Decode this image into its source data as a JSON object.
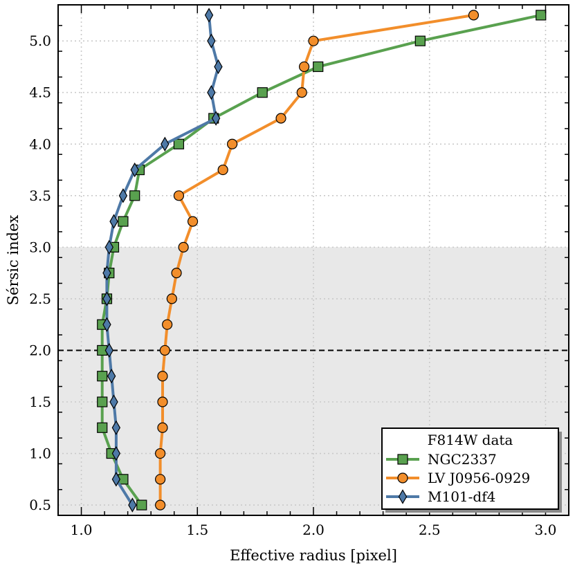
{
  "colors": {
    "background": "#ffffff",
    "shaded_band": "#e8e8e8",
    "grid": "#c9c9c9",
    "reference_line": "#000000"
  },
  "chart_data": {
    "type": "line",
    "xlabel": "Effective radius [pixel]",
    "ylabel": "Sérsic index",
    "xlim": [
      0.9,
      3.1
    ],
    "ylim": [
      0.4,
      5.35
    ],
    "xticks": [
      1.0,
      1.5,
      2.0,
      2.5,
      3.0
    ],
    "xtick_labels": [
      "1.0",
      "1.5",
      "2.0",
      "2.5",
      "3.0"
    ],
    "yticks": [
      0.5,
      1.0,
      1.5,
      2.0,
      2.5,
      3.0,
      3.5,
      4.0,
      4.5,
      5.0
    ],
    "ytick_labels": [
      "0.5",
      "1.0",
      "1.5",
      "2.0",
      "2.5",
      "3.0",
      "3.5",
      "4.0",
      "4.5",
      "5.0"
    ],
    "grid": true,
    "shaded_region": {
      "y": [
        0.4,
        3.0
      ]
    },
    "reference_line": {
      "y": 2.0,
      "style": "dashed"
    },
    "legend": {
      "title": "F814W data",
      "position": "bottom-right"
    },
    "series": [
      {
        "name": "NGC2337",
        "color": "#59a14f",
        "marker": "square",
        "points": [
          [
            1.26,
            0.5
          ],
          [
            1.18,
            0.75
          ],
          [
            1.13,
            1.0
          ],
          [
            1.09,
            1.25
          ],
          [
            1.09,
            1.5
          ],
          [
            1.09,
            1.75
          ],
          [
            1.09,
            2.0
          ],
          [
            1.09,
            2.25
          ],
          [
            1.11,
            2.5
          ],
          [
            1.12,
            2.75
          ],
          [
            1.14,
            3.0
          ],
          [
            1.18,
            3.25
          ],
          [
            1.23,
            3.5
          ],
          [
            1.25,
            3.75
          ],
          [
            1.42,
            4.0
          ],
          [
            1.57,
            4.25
          ],
          [
            1.78,
            4.5
          ],
          [
            2.02,
            4.75
          ],
          [
            2.46,
            5.0
          ],
          [
            2.98,
            5.25
          ]
        ]
      },
      {
        "name": "LV J0956-0929",
        "color": "#f28e2b",
        "marker": "circle",
        "points": [
          [
            1.34,
            0.5
          ],
          [
            1.34,
            0.75
          ],
          [
            1.34,
            1.0
          ],
          [
            1.35,
            1.25
          ],
          [
            1.35,
            1.5
          ],
          [
            1.35,
            1.75
          ],
          [
            1.36,
            2.0
          ],
          [
            1.37,
            2.25
          ],
          [
            1.39,
            2.5
          ],
          [
            1.41,
            2.75
          ],
          [
            1.44,
            3.0
          ],
          [
            1.48,
            3.25
          ],
          [
            1.42,
            3.5
          ],
          [
            1.61,
            3.75
          ],
          [
            1.65,
            4.0
          ],
          [
            1.86,
            4.25
          ],
          [
            1.95,
            4.5
          ],
          [
            1.96,
            4.75
          ],
          [
            2.0,
            5.0
          ],
          [
            2.69,
            5.25
          ]
        ]
      },
      {
        "name": "M101-df4",
        "color": "#4e79a7",
        "marker": "diamond",
        "points": [
          [
            1.22,
            0.5
          ],
          [
            1.15,
            0.75
          ],
          [
            1.15,
            1.0
          ],
          [
            1.15,
            1.25
          ],
          [
            1.14,
            1.5
          ],
          [
            1.13,
            1.75
          ],
          [
            1.12,
            2.0
          ],
          [
            1.11,
            2.25
          ],
          [
            1.11,
            2.5
          ],
          [
            1.11,
            2.75
          ],
          [
            1.12,
            3.0
          ],
          [
            1.14,
            3.25
          ],
          [
            1.18,
            3.5
          ],
          [
            1.23,
            3.75
          ],
          [
            1.36,
            4.0
          ],
          [
            1.58,
            4.25
          ],
          [
            1.56,
            4.5
          ],
          [
            1.59,
            4.75
          ],
          [
            1.56,
            5.0
          ],
          [
            1.55,
            5.25
          ]
        ]
      }
    ]
  }
}
